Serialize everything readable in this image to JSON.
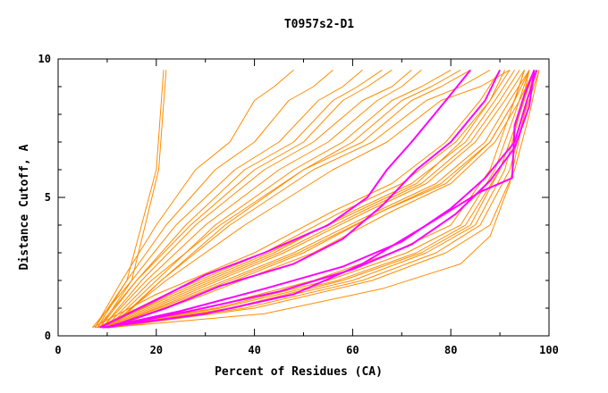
{
  "chart_data": {
    "type": "line",
    "title": "T0957s2-D1",
    "xlabel": "Percent of Residues (CA)",
    "ylabel": "Distance Cutoff, A",
    "xlim": [
      0,
      100
    ],
    "ylim": [
      0,
      10
    ],
    "x_ticks": [
      "0",
      "20",
      "40",
      "60",
      "80",
      "100"
    ],
    "y_ticks": [
      "0",
      "5",
      "10"
    ],
    "grid": false,
    "legend": "none",
    "colors": {
      "background_series": "#ff8c00",
      "highlight_series": "#ff00ff",
      "axis": "#000000"
    },
    "series": [
      {
        "name": "group-a-1",
        "role": "background",
        "x": [
          7.5,
          14,
          20,
          21.5
        ],
        "y": [
          0.3,
          2,
          6,
          9.6
        ]
      },
      {
        "name": "group-a-2",
        "role": "background",
        "x": [
          8.5,
          15,
          20.5,
          22
        ],
        "y": [
          0.3,
          2,
          6,
          9.6
        ]
      },
      {
        "name": "group-b-1",
        "role": "background",
        "x": [
          9,
          18,
          30,
          45,
          55,
          65,
          70,
          74
        ],
        "y": [
          0.3,
          2,
          4,
          6,
          7,
          8.5,
          9,
          9.6
        ]
      },
      {
        "name": "group-b-2",
        "role": "background",
        "x": [
          8,
          16,
          27,
          40,
          50,
          58,
          63,
          68
        ],
        "y": [
          0.3,
          2,
          4,
          6,
          7,
          8.5,
          9,
          9.6
        ]
      },
      {
        "name": "group-b-3",
        "role": "background",
        "x": [
          10,
          20,
          32,
          48,
          58,
          68,
          74,
          80
        ],
        "y": [
          0.3,
          2,
          4,
          6,
          7,
          8.5,
          9,
          9.6
        ]
      },
      {
        "name": "group-b-4",
        "role": "background",
        "x": [
          7,
          15,
          24,
          36,
          45,
          53,
          58,
          62
        ],
        "y": [
          0.3,
          2,
          4,
          6,
          7,
          8.5,
          9,
          9.6
        ]
      },
      {
        "name": "group-b-5",
        "role": "background",
        "x": [
          9.5,
          19,
          33,
          50,
          62,
          72,
          78,
          84
        ],
        "y": [
          0.3,
          2,
          4,
          6,
          7,
          8.5,
          9,
          9.6
        ]
      },
      {
        "name": "group-b-6",
        "role": "background",
        "x": [
          8,
          14,
          22,
          32,
          40,
          47,
          52,
          56
        ],
        "y": [
          0.3,
          2,
          4,
          6,
          7,
          8.5,
          9,
          9.6
        ]
      },
      {
        "name": "group-b-7",
        "role": "background",
        "x": [
          11,
          21,
          35,
          52,
          64,
          75,
          82,
          88
        ],
        "y": [
          0.3,
          2,
          4,
          6,
          7,
          8.5,
          9,
          9.6
        ]
      },
      {
        "name": "group-b-8",
        "role": "background",
        "x": [
          7.5,
          13,
          20,
          28,
          35,
          40,
          44,
          48
        ],
        "y": [
          0.3,
          2,
          4,
          6,
          7,
          8.5,
          9,
          9.6
        ]
      },
      {
        "name": "group-b-9",
        "role": "background",
        "x": [
          10,
          22,
          38,
          56,
          67,
          78,
          86,
          92
        ],
        "y": [
          0.3,
          2,
          4,
          6,
          7,
          8.5,
          9,
          9.6
        ]
      },
      {
        "name": "group-b-10",
        "role": "background",
        "x": [
          9,
          17,
          28,
          42,
          52,
          62,
          68,
          72
        ],
        "y": [
          0.3,
          2,
          4,
          6,
          7,
          8.5,
          9,
          9.6
        ]
      },
      {
        "name": "group-b-11",
        "role": "background",
        "x": [
          8.5,
          16,
          26,
          38,
          48,
          56,
          61,
          66
        ],
        "y": [
          0.3,
          2,
          4,
          6,
          7,
          8.5,
          9,
          9.6
        ]
      },
      {
        "name": "group-b-12",
        "role": "background",
        "x": [
          10.5,
          21,
          34,
          50,
          60,
          70,
          76,
          82
        ],
        "y": [
          0.3,
          2,
          4,
          6,
          7,
          8.5,
          9,
          9.6
        ]
      },
      {
        "name": "group-c-1",
        "role": "background",
        "x": [
          9,
          25,
          45,
          62,
          74,
          84,
          90,
          94
        ],
        "y": [
          0.3,
          1.5,
          3,
          4.5,
          5.5,
          7,
          8.5,
          9.6
        ]
      },
      {
        "name": "group-c-2",
        "role": "background",
        "x": [
          10,
          27,
          48,
          65,
          77,
          87,
          92,
          96
        ],
        "y": [
          0.3,
          1.5,
          3,
          4.5,
          5.5,
          7,
          8.5,
          9.6
        ]
      },
      {
        "name": "group-c-3",
        "role": "background",
        "x": [
          8,
          22,
          42,
          58,
          70,
          81,
          88,
          92
        ],
        "y": [
          0.3,
          1.5,
          3,
          4.5,
          5.5,
          7,
          8.5,
          9.6
        ]
      },
      {
        "name": "group-c-4",
        "role": "background",
        "x": [
          11,
          30,
          52,
          68,
          80,
          89,
          94,
          97
        ],
        "y": [
          0.3,
          1.5,
          3,
          4.5,
          5.5,
          7,
          8.5,
          9.6
        ]
      },
      {
        "name": "group-c-5",
        "role": "background",
        "x": [
          9.5,
          26,
          46,
          63,
          75,
          85,
          91,
          95
        ],
        "y": [
          0.3,
          1.5,
          3,
          4.5,
          5.5,
          7,
          8.5,
          9.6
        ]
      },
      {
        "name": "group-c-6",
        "role": "background",
        "x": [
          7,
          20,
          40,
          56,
          68,
          79,
          86,
          90
        ],
        "y": [
          0.3,
          1.5,
          3,
          4.5,
          5.5,
          7,
          8.5,
          9.6
        ]
      },
      {
        "name": "group-c-7",
        "role": "background",
        "x": [
          10.5,
          29,
          50,
          66,
          78,
          88,
          93,
          96
        ],
        "y": [
          0.3,
          1.5,
          3,
          4.5,
          5.5,
          7,
          8.5,
          9.6
        ]
      },
      {
        "name": "group-c-8",
        "role": "background",
        "x": [
          8.5,
          24,
          44,
          60,
          72,
          83,
          89,
          93
        ],
        "y": [
          0.3,
          1.5,
          3,
          4.5,
          5.5,
          7,
          8.5,
          9.6
        ]
      },
      {
        "name": "group-c-9",
        "role": "background",
        "x": [
          9,
          23,
          43,
          61,
          73,
          82,
          88,
          91
        ],
        "y": [
          0.3,
          1.5,
          3,
          4.5,
          5.5,
          7,
          8.5,
          9.6
        ]
      },
      {
        "name": "group-c-10",
        "role": "background",
        "x": [
          10,
          28,
          49,
          66,
          79,
          88,
          93,
          95
        ],
        "y": [
          0.3,
          1.5,
          3,
          4.5,
          5.5,
          7,
          8.5,
          9.6
        ]
      },
      {
        "name": "group-d-1",
        "role": "background",
        "x": [
          9,
          35,
          58,
          74,
          84,
          90,
          94,
          97
        ],
        "y": [
          0.3,
          1,
          2,
          3,
          4,
          6,
          8,
          9.6
        ]
      },
      {
        "name": "group-d-2",
        "role": "background",
        "x": [
          10,
          38,
          62,
          77,
          86,
          92,
          95,
          98
        ],
        "y": [
          0.3,
          1,
          2,
          3,
          4,
          6,
          8,
          9.6
        ]
      },
      {
        "name": "group-d-3",
        "role": "background",
        "x": [
          8,
          32,
          55,
          71,
          82,
          89,
          93,
          96
        ],
        "y": [
          0.3,
          1,
          2,
          3,
          4,
          6,
          8,
          9.6
        ]
      },
      {
        "name": "group-d-4",
        "role": "background",
        "x": [
          11,
          40,
          64,
          79,
          88,
          93,
          96,
          98
        ],
        "y": [
          0.3,
          1,
          2,
          3,
          4,
          6,
          8,
          9.6
        ]
      },
      {
        "name": "group-d-5",
        "role": "background",
        "x": [
          9.5,
          36,
          60,
          75,
          85,
          91,
          94,
          97
        ],
        "y": [
          0.3,
          1,
          2,
          3,
          4,
          6,
          8,
          9.6
        ]
      },
      {
        "name": "group-d-6",
        "role": "background",
        "x": [
          7.5,
          30,
          52,
          68,
          80,
          88,
          92,
          95
        ],
        "y": [
          0.3,
          1,
          2,
          3,
          4,
          6,
          8,
          9.6
        ]
      },
      {
        "name": "group-d-7",
        "role": "background",
        "x": [
          10.5,
          42,
          66,
          82,
          88,
          92,
          95,
          97
        ],
        "y": [
          0.3,
          0.8,
          1.7,
          2.6,
          3.6,
          5.5,
          8,
          9.6
        ]
      },
      {
        "name": "group-d-8",
        "role": "background",
        "x": [
          8.5,
          33,
          57,
          73,
          83,
          90,
          94,
          96
        ],
        "y": [
          0.3,
          1,
          2,
          3,
          4,
          6,
          8,
          9.6
        ]
      },
      {
        "name": "highlight-1",
        "role": "highlight",
        "x": [
          8.5,
          20,
          30,
          42,
          55,
          63,
          67,
          72,
          79,
          84
        ],
        "y": [
          0.3,
          1.3,
          2.2,
          3,
          4,
          5,
          6,
          7,
          8.5,
          9.6
        ]
      },
      {
        "name": "highlight-2",
        "role": "highlight",
        "x": [
          10,
          22,
          33,
          48,
          58,
          66,
          73,
          80,
          87,
          90
        ],
        "y": [
          0.3,
          1,
          1.8,
          2.6,
          3.5,
          4.7,
          6,
          7,
          8.5,
          9.6
        ]
      },
      {
        "name": "highlight-3",
        "role": "highlight",
        "x": [
          10,
          27,
          45,
          60,
          72,
          81,
          88,
          93,
          96,
          97
        ],
        "y": [
          0.3,
          0.9,
          1.6,
          2.4,
          3.3,
          4.4,
          5.6,
          6.8,
          8.3,
          9.6
        ]
      },
      {
        "name": "highlight-4",
        "role": "highlight",
        "x": [
          9.5,
          25,
          42,
          58,
          70,
          80,
          87,
          93,
          95.5,
          97.5
        ],
        "y": [
          0.3,
          0.9,
          1.7,
          2.5,
          3.4,
          4.6,
          5.7,
          7,
          8.5,
          9.6
        ]
      },
      {
        "name": "highlight-5",
        "role": "highlight",
        "x": [
          9,
          30,
          48,
          62,
          76,
          86,
          92.5,
          93,
          95,
          97
        ],
        "y": [
          0.3,
          0.8,
          1.5,
          2.6,
          4.1,
          5.2,
          5.7,
          7.6,
          8.7,
          9.6
        ]
      }
    ]
  }
}
